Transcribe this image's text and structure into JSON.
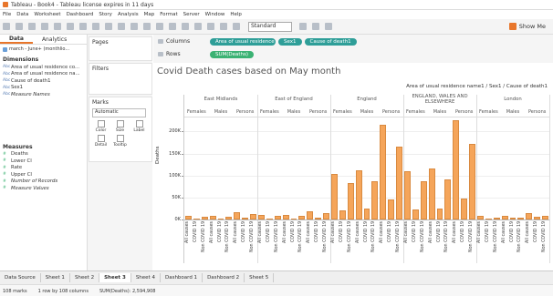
{
  "window_title": "Tableau - Book4 - Tableau license expires in 11 days",
  "menu": [
    "File",
    "Data",
    "Worksheet",
    "Dashboard",
    "Story",
    "Analysis",
    "Map",
    "Format",
    "Server",
    "Window",
    "Help"
  ],
  "toolbar": {
    "fit": "Standard",
    "show_me": "Show Me"
  },
  "data_pane": {
    "tabs": [
      "Data",
      "Analytics"
    ],
    "source": "march - June+ (monthlio...",
    "dimensions_title": "Dimensions",
    "dimensions": [
      {
        "icon": "Abc",
        "name": "Area of usual residence co..."
      },
      {
        "icon": "Abc",
        "name": "Area of usual residence na..."
      },
      {
        "icon": "Abc",
        "name": "Cause of death1"
      },
      {
        "icon": "Abc",
        "name": "Sex1"
      },
      {
        "icon": "Abc",
        "name": "Measure Names"
      }
    ],
    "measures_title": "Measures",
    "measures": [
      {
        "icon": "#",
        "name": "Deaths"
      },
      {
        "icon": "#",
        "name": "Lower CI"
      },
      {
        "icon": "#",
        "name": "Rate"
      },
      {
        "icon": "#",
        "name": "Upper CI"
      },
      {
        "icon": "#",
        "name": "Number of Records"
      },
      {
        "icon": "#",
        "name": "Measure Values"
      }
    ]
  },
  "cards": {
    "pages": "Pages",
    "filters": "Filters",
    "marks": "Marks",
    "mark_type": "Automatic",
    "mark_buttons": [
      "Color",
      "Size",
      "Label",
      "Detail",
      "Tooltip"
    ]
  },
  "shelves": {
    "columns_label": "Columns",
    "columns": [
      "Area of usual residence ...",
      "Sex1",
      "Cause of death1"
    ],
    "rows_label": "Rows",
    "rows": [
      "SUM(Deaths)"
    ]
  },
  "chart_data": {
    "type": "bar",
    "title": "Covid Death cases based on May month",
    "header": "Area of usual residence name1 / Sex1 / Cause of death1",
    "y_label": "Deaths",
    "color": "#f5a55a",
    "grid": true,
    "sexes": [
      "Females",
      "Males",
      "Persons"
    ],
    "causes": [
      "All causes",
      "COVID 19",
      "Non COVID 19"
    ],
    "panels": [
      {
        "region": "East Midlands",
        "values": [
          [
            8000,
            1500,
            6500
          ],
          [
            8500,
            1800,
            6700
          ],
          [
            16500,
            3300,
            13200
          ]
        ]
      },
      {
        "region": "East of England",
        "values": [
          [
            9500,
            2000,
            7500
          ],
          [
            9800,
            2300,
            7500
          ],
          [
            19300,
            4300,
            15000
          ]
        ]
      },
      {
        "region": "England",
        "values": [
          [
            104000,
            21000,
            83000
          ],
          [
            111000,
            24000,
            87000
          ],
          [
            215000,
            45000,
            165000
          ]
        ]
      },
      {
        "region": "ENGLAND, WALES AND ELSEWHERE",
        "values": [
          [
            110000,
            22000,
            88000
          ],
          [
            116000,
            25000,
            91000
          ],
          [
            226000,
            47000,
            172000
          ]
        ]
      },
      {
        "region": "London",
        "values": [
          [
            7500,
            2800,
            4700
          ],
          [
            7800,
            3300,
            4500
          ],
          [
            15300,
            6100,
            9200
          ]
        ]
      }
    ],
    "ylim": [
      0,
      230000
    ],
    "yticks": [
      {
        "value": 0,
        "label": "0K"
      },
      {
        "value": 50000,
        "label": "50K"
      },
      {
        "value": 100000,
        "label": "100K"
      },
      {
        "value": 150000,
        "label": "150K"
      },
      {
        "value": 200000,
        "label": "200K"
      }
    ]
  },
  "sheet_tabs": [
    "Data Source",
    "Sheet 1",
    "Sheet 2",
    "Sheet 3",
    "Sheet 4",
    "Dashboard 1",
    "Dashboard 2",
    "Sheet 5"
  ],
  "active_tab": 3,
  "status": [
    "108 marks",
    "1 row by 108 columns",
    "SUM(Deaths): 2,594,908"
  ]
}
